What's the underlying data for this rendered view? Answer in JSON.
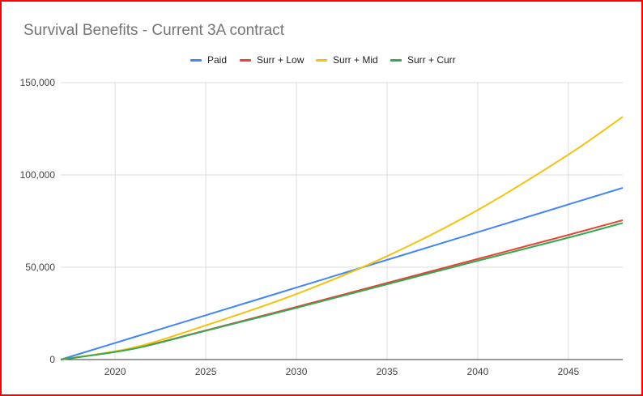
{
  "chart_data": {
    "type": "line",
    "title": "Survival Benefits - Current 3A contract",
    "xlabel": "",
    "ylabel": "",
    "xlim": [
      2017,
      2048
    ],
    "ylim": [
      0,
      150000
    ],
    "x_ticks": [
      2020,
      2025,
      2030,
      2035,
      2040,
      2045
    ],
    "y_ticks": [
      0,
      50000,
      100000,
      150000
    ],
    "x_tick_labels": [
      "2020",
      "2025",
      "2030",
      "2035",
      "2040",
      "2045"
    ],
    "y_tick_labels": [
      "0",
      "50,000",
      "100,000",
      "150,000"
    ],
    "grid": true,
    "legend_position": "top",
    "x": [
      2017,
      2021,
      2025,
      2030,
      2035,
      2040,
      2045,
      2048
    ],
    "series": [
      {
        "name": "Paid",
        "color": "#4285f4",
        "values": [
          0,
          12000,
          24000,
          39000,
          54000,
          69000,
          84000,
          93000
        ]
      },
      {
        "name": "Surr + Low",
        "color": "#ea4335",
        "values": [
          0,
          6000,
          15800,
          28500,
          41500,
          54500,
          67500,
          75500
        ]
      },
      {
        "name": "Surr + Mid",
        "color": "#f4c20d",
        "values": [
          0,
          6500,
          18500,
          35500,
          56000,
          81000,
          111000,
          131500
        ]
      },
      {
        "name": "Surr + Curr",
        "color": "#34a853",
        "values": [
          0,
          5800,
          15600,
          28000,
          40800,
          53500,
          66000,
          74000
        ]
      }
    ]
  }
}
